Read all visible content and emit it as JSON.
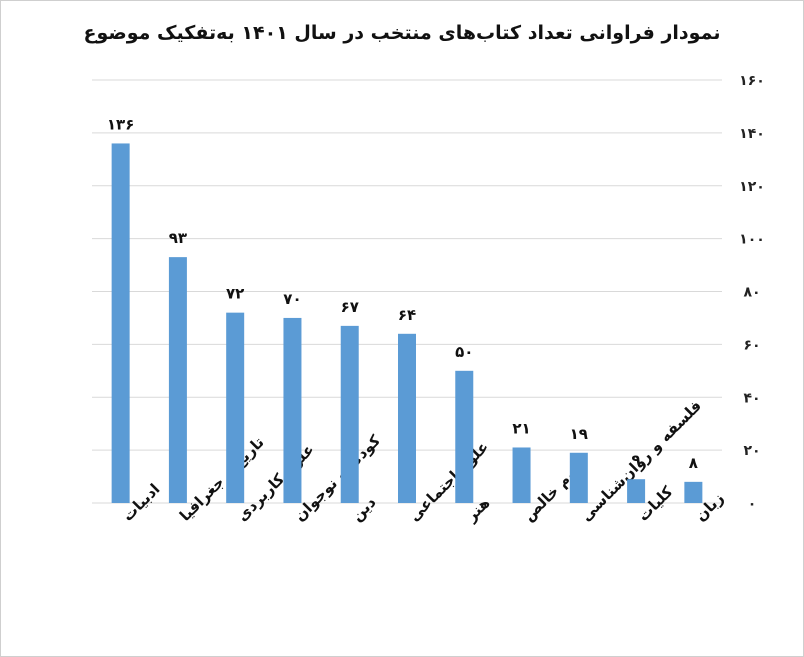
{
  "chart_data": {
    "type": "bar",
    "title": "نمودار فراوانی تعداد کتاب‌های منتخب در سال ۱۴۰۱ به‌تفکیک موضوع",
    "xlabel": "",
    "ylabel": "",
    "categories": [
      "ادبیات",
      "تاریخ و جغرافیا",
      "علوم کاربردی",
      "کودک و نوجوان",
      "دین",
      "علوم اجتماعی",
      "هنر",
      "علوم خالص",
      "فلسفه و روان‌شناسی",
      "کلیات",
      "زبان"
    ],
    "values": [
      136,
      93,
      72,
      70,
      67,
      64,
      50,
      21,
      19,
      9,
      8
    ],
    "value_labels": [
      "۱۳۶",
      "۹۳",
      "۷۲",
      "۷۰",
      "۶۷",
      "۶۴",
      "۵۰",
      "۲۱",
      "۱۹",
      "۹",
      "۸"
    ],
    "ylim": [
      0,
      160
    ],
    "yticks": [
      0,
      20,
      40,
      60,
      80,
      100,
      120,
      140,
      160
    ],
    "ytick_labels": [
      "۰",
      "۲۰",
      "۴۰",
      "۶۰",
      "۸۰",
      "۱۰۰",
      "۱۲۰",
      "۱۴۰",
      "۱۶۰"
    ],
    "y_axis_side": "right",
    "grid": true,
    "bar_color": "#5b9bd5",
    "grid_color": "#d9d9d9"
  }
}
